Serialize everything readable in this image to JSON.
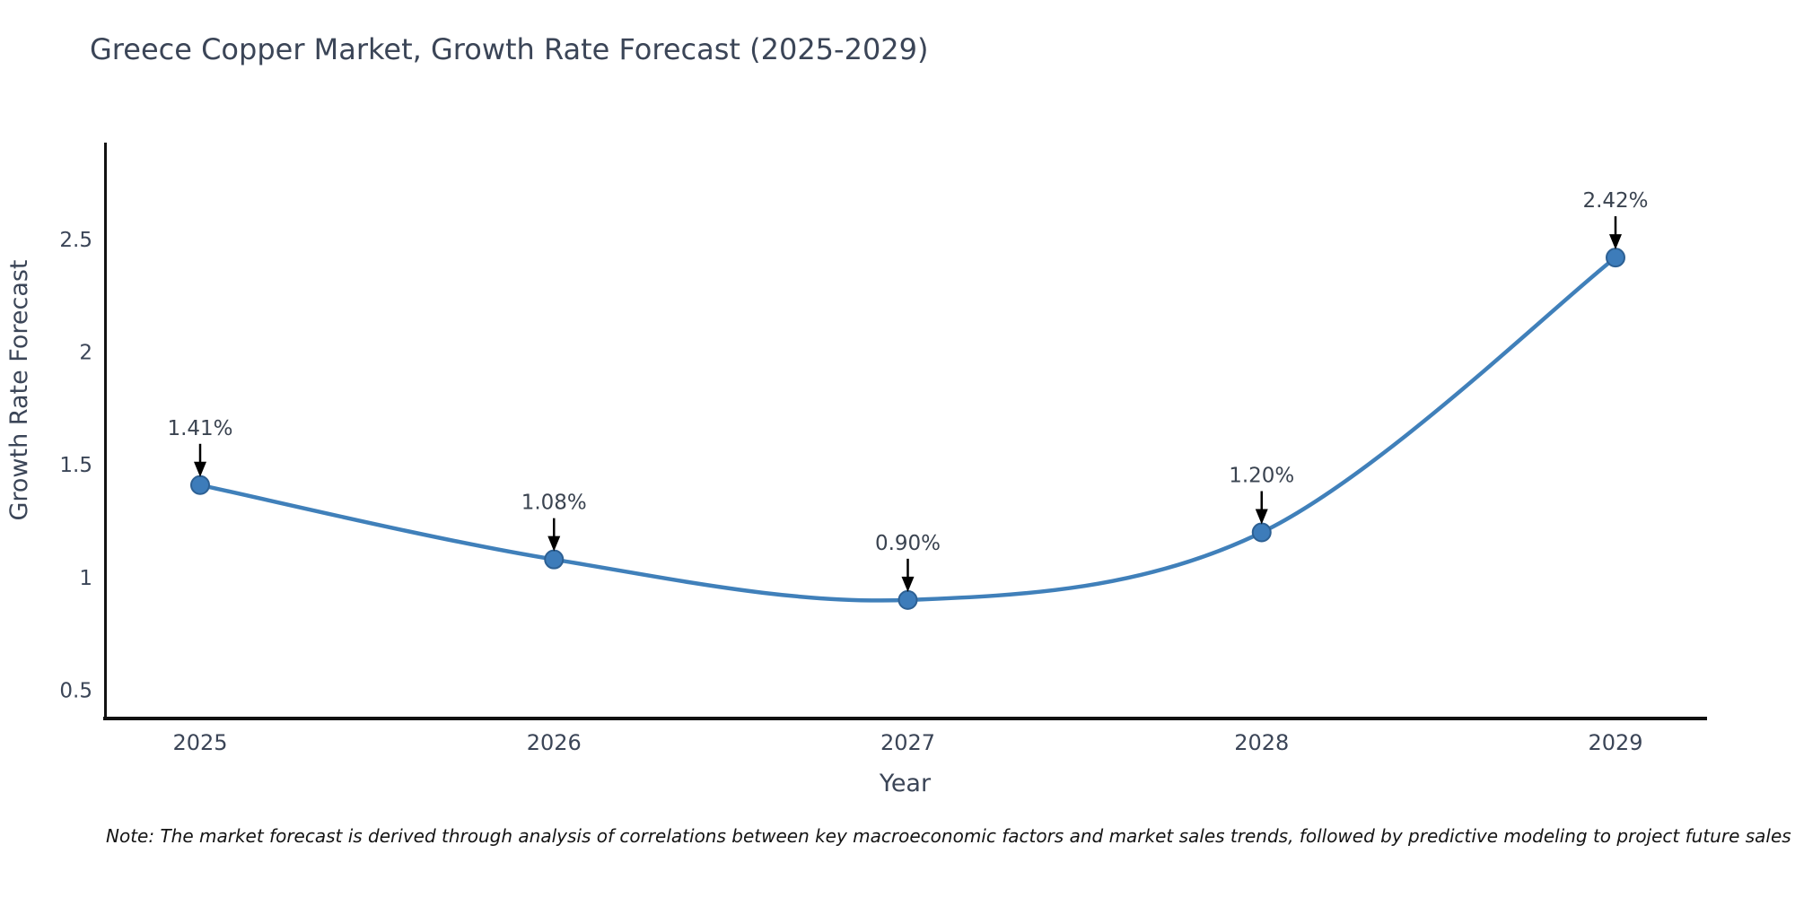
{
  "title": "Greece Copper Market, Growth Rate Forecast (2025-2029)",
  "note": "Note: The market forecast is derived through analysis of correlations between key macroeconomic factors and market sales trends, followed by predictive modeling to project future sales",
  "chart_data": {
    "type": "line",
    "title": "Greece Copper Market, Growth Rate Forecast (2025-2029)",
    "xlabel": "Year",
    "ylabel": "Growth Rate Forecast",
    "x": [
      2025,
      2026,
      2027,
      2028,
      2029
    ],
    "series": [
      {
        "name": "Growth Rate Forecast",
        "values": [
          1.41,
          1.08,
          0.9,
          1.2,
          2.42
        ]
      }
    ],
    "point_labels": [
      "1.41%",
      "1.08%",
      "0.90%",
      "1.20%",
      "2.42%"
    ],
    "xtick_labels": [
      "2025",
      "2026",
      "2027",
      "2028",
      "2029"
    ],
    "yticks": [
      0.5,
      1,
      1.5,
      2,
      2.5
    ],
    "ytick_labels": [
      "0.5",
      "1",
      "1.5",
      "2",
      "2.5"
    ],
    "ylim": [
      0.37,
      2.93
    ],
    "xlim": [
      2024.73,
      2029.26
    ],
    "grid": false,
    "legend": "none",
    "smooth": true,
    "line_color": "#4080ba",
    "marker_color": "#3d7cba",
    "marker_edge_color": "#2d6093",
    "annotation_arrow_color": "#000000",
    "axis_color": "#111111",
    "text_color": "#3b4557"
  }
}
